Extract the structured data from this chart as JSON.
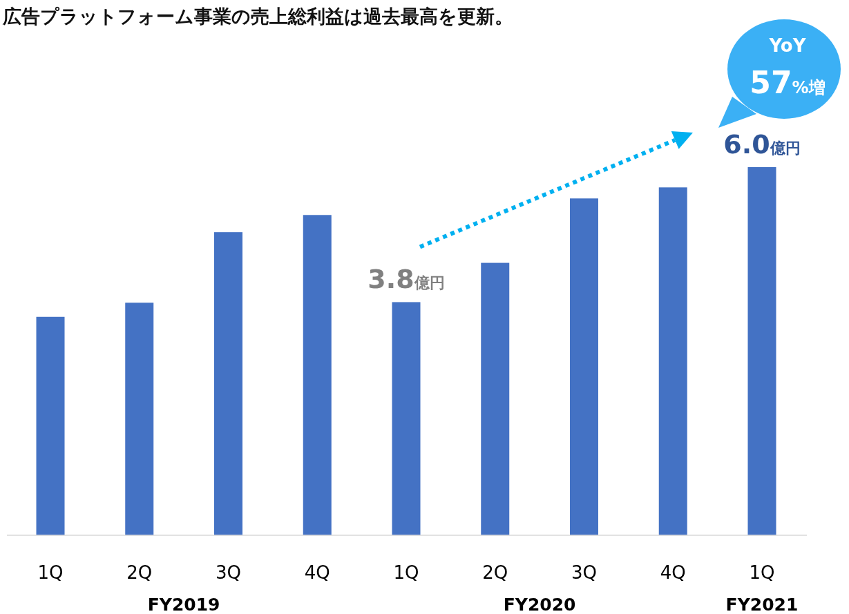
{
  "chart_data": {
    "type": "bar",
    "title": "広告プラットフォーム事業の売上総利益は過去最高を更新。",
    "categories": [
      "1Q",
      "2Q",
      "3Q",
      "4Q",
      "1Q",
      "2Q",
      "3Q",
      "4Q",
      "1Q"
    ],
    "values": [
      3.56,
      3.79,
      4.94,
      5.22,
      3.8,
      4.44,
      5.49,
      5.67,
      6.0
    ],
    "color": "#4472c4",
    "value_labels": [
      null,
      null,
      null,
      null,
      "3.8億円",
      null,
      null,
      null,
      "6.0億円"
    ],
    "annotations": [
      "FY2019",
      "FY2020",
      "FY2021",
      "YoY",
      "57%増"
    ]
  }
}
